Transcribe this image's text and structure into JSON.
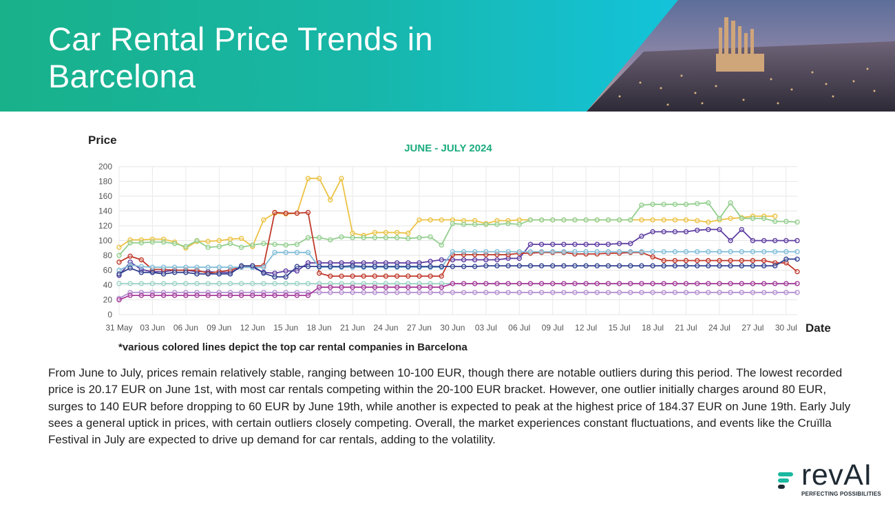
{
  "header": {
    "title": "Car Rental Price Trends in Barcelona"
  },
  "chart_labels": {
    "y_axis_title": "Price",
    "x_axis_title": "Date",
    "subtitle": "JUNE - JULY 2024",
    "footnote": "*various colored lines depict the top car rental companies in Barcelona"
  },
  "description": "From June to July, prices remain relatively stable, ranging between 10-100 EUR, though there are notable outliers during this period. The lowest recorded price is 20.17 EUR on June 1st, with most car rentals competing within the 20-100 EUR bracket. However, one outlier initially charges around 80 EUR, surges to 140 EUR before dropping to 60 EUR by June 19th, while another is expected to peak at the highest price of 184.37 EUR on June 19th. Early July sees a general uptick in prices, with certain outliers closely competing. Overall, the market experiences constant fluctuations, and events like the Cruïlla Festival in July are expected to drive up demand for car rentals, adding to the volatility.",
  "logo": {
    "name": "revAI",
    "tagline": "PERFECTING POSSIBILITIES"
  },
  "colors": {
    "header_start": "#19b18a",
    "header_end": "#14c8e4",
    "subtitle": "#1aab7c",
    "logo_accent": "#1bb8a0"
  },
  "chart_data": {
    "type": "line",
    "title": "JUNE - JULY 2024",
    "xlabel": "Date",
    "ylabel": "Price",
    "ylim": [
      0,
      200
    ],
    "yticks": [
      0,
      20,
      40,
      60,
      80,
      100,
      120,
      140,
      160,
      180,
      200
    ],
    "grid": true,
    "x_tick_labels": [
      "31 May",
      "03 Jun",
      "06 Jun",
      "09 Jun",
      "12 Jun",
      "15 Jun",
      "18 Jun",
      "21 Jun",
      "24 Jun",
      "27 Jun",
      "30 Jun",
      "03 Jul",
      "06 Jul",
      "09 Jul",
      "12 Jul",
      "15 Jul",
      "18 Jul",
      "21 Jul",
      "24 Jul",
      "27 Jul",
      "30 Jul"
    ],
    "x_start": "31 May",
    "series": [
      {
        "color": "#ecc244",
        "values": [
          91,
          101,
          101,
          102,
          102,
          98,
          90,
          99,
          99,
          100,
          102,
          103,
          92,
          128,
          137,
          136,
          137,
          184,
          184,
          155,
          184,
          110,
          107,
          111,
          111,
          111,
          110,
          128,
          128,
          128,
          128,
          127,
          127,
          123,
          127,
          127,
          128,
          128,
          128,
          128,
          128,
          128,
          128,
          128,
          128,
          128,
          128,
          128,
          128,
          128,
          128,
          128,
          127,
          125,
          128,
          130,
          131,
          133,
          133,
          133
        ]
      },
      {
        "color": "#93ce8e",
        "values": [
          80,
          97,
          97,
          98,
          98,
          96,
          92,
          100,
          91,
          92,
          96,
          91,
          94,
          96,
          95,
          94,
          95,
          104,
          104,
          101,
          105,
          104,
          104,
          104,
          104,
          104,
          103,
          104,
          105,
          94,
          123,
          122,
          122,
          122,
          122,
          123,
          122,
          128,
          128,
          128,
          128,
          128,
          128,
          128,
          128,
          128,
          128,
          148,
          149,
          149,
          149,
          149,
          150,
          151,
          130,
          151,
          130,
          130,
          130,
          126,
          126,
          125
        ]
      },
      {
        "color": "#5e3da2",
        "values": [
          53,
          71,
          61,
          58,
          58,
          60,
          60,
          58,
          58,
          57,
          57,
          64,
          64,
          57,
          56,
          59,
          59,
          70,
          70,
          70,
          70,
          70,
          70,
          70,
          70,
          70,
          70,
          70,
          72,
          74,
          74,
          74,
          74,
          74,
          74,
          76,
          76,
          95,
          95,
          95,
          95,
          95,
          95,
          95,
          95,
          96,
          96,
          106,
          112,
          112,
          112,
          112,
          114,
          115,
          115,
          100,
          115,
          100,
          100,
          100,
          100,
          100
        ]
      },
      {
        "color": "#c0392b",
        "values": [
          71,
          79,
          74,
          61,
          61,
          60,
          60,
          60,
          56,
          58,
          60,
          65,
          66,
          66,
          138,
          137,
          137,
          138,
          56,
          52,
          52,
          52,
          52,
          52,
          52,
          52,
          52,
          52,
          52,
          52,
          81,
          81,
          81,
          81,
          81,
          81,
          83,
          83,
          84,
          84,
          84,
          82,
          82,
          82,
          83,
          83,
          84,
          84,
          78,
          73,
          73,
          73,
          73,
          73,
          73,
          73,
          73,
          73,
          73,
          70,
          70,
          58
        ]
      },
      {
        "color": "#80bcd8",
        "values": [
          60,
          67,
          65,
          64,
          64,
          64,
          64,
          64,
          64,
          64,
          64,
          64,
          64,
          64,
          84,
          84,
          84,
          84,
          64,
          64,
          64,
          64,
          64,
          64,
          64,
          64,
          64,
          64,
          64,
          64,
          85,
          85,
          85,
          85,
          85,
          85,
          85,
          85,
          85,
          85,
          85,
          85,
          85,
          85,
          85,
          85,
          85,
          85,
          85,
          85,
          85,
          85,
          85,
          85,
          85,
          85,
          85,
          85,
          85,
          85,
          85,
          85
        ]
      },
      {
        "color": "#2f3f8f",
        "values": [
          55,
          63,
          57,
          57,
          55,
          57,
          57,
          55,
          55,
          55,
          55,
          66,
          66,
          56,
          51,
          51,
          65,
          65,
          65,
          65,
          65,
          66,
          65,
          65,
          65,
          65,
          65,
          65,
          65,
          65,
          65,
          65,
          65,
          66,
          66,
          66,
          66,
          66,
          66,
          66,
          66,
          66,
          66,
          66,
          66,
          66,
          66,
          66,
          66,
          66,
          66,
          66,
          66,
          66,
          66,
          66,
          66,
          66,
          66,
          66,
          75,
          75
        ]
      },
      {
        "color": "#9bd3c5",
        "values": [
          42,
          42,
          42,
          42,
          42,
          42,
          42,
          42,
          42,
          42,
          42,
          42,
          42,
          42,
          42,
          42,
          42,
          42,
          42,
          42,
          42,
          42,
          42,
          42,
          42,
          42,
          42,
          42,
          42,
          42,
          42,
          42,
          42,
          42,
          42,
          42,
          42,
          42,
          42,
          42,
          42,
          42,
          42,
          42,
          42,
          42,
          42,
          42,
          42,
          42,
          42,
          42,
          42,
          42,
          42,
          42,
          42,
          42,
          42,
          42,
          42,
          42
        ]
      },
      {
        "color": "#b48fd0",
        "values": [
          22,
          30,
          30,
          30,
          30,
          30,
          30,
          30,
          30,
          30,
          30,
          30,
          30,
          30,
          30,
          30,
          30,
          30,
          30,
          30,
          30,
          30,
          30,
          30,
          30,
          30,
          30,
          30,
          30,
          30,
          30,
          30,
          30,
          30,
          30,
          30,
          30,
          30,
          30,
          30,
          30,
          30,
          30,
          30,
          30,
          30,
          30,
          30,
          30,
          30,
          30,
          30,
          30,
          30,
          30,
          30,
          30,
          30,
          30,
          30,
          30,
          30
        ]
      },
      {
        "color": "#a73a9a",
        "values": [
          20,
          26,
          26,
          26,
          26,
          26,
          26,
          26,
          26,
          26,
          26,
          26,
          26,
          26,
          26,
          26,
          26,
          26,
          37,
          37,
          37,
          37,
          37,
          37,
          37,
          37,
          37,
          37,
          37,
          37,
          42,
          42,
          42,
          42,
          42,
          42,
          42,
          42,
          42,
          42,
          42,
          42,
          42,
          42,
          42,
          42,
          42,
          42,
          42,
          42,
          42,
          42,
          42,
          42,
          42,
          42,
          42,
          42,
          42,
          42,
          42,
          42
        ]
      }
    ]
  }
}
